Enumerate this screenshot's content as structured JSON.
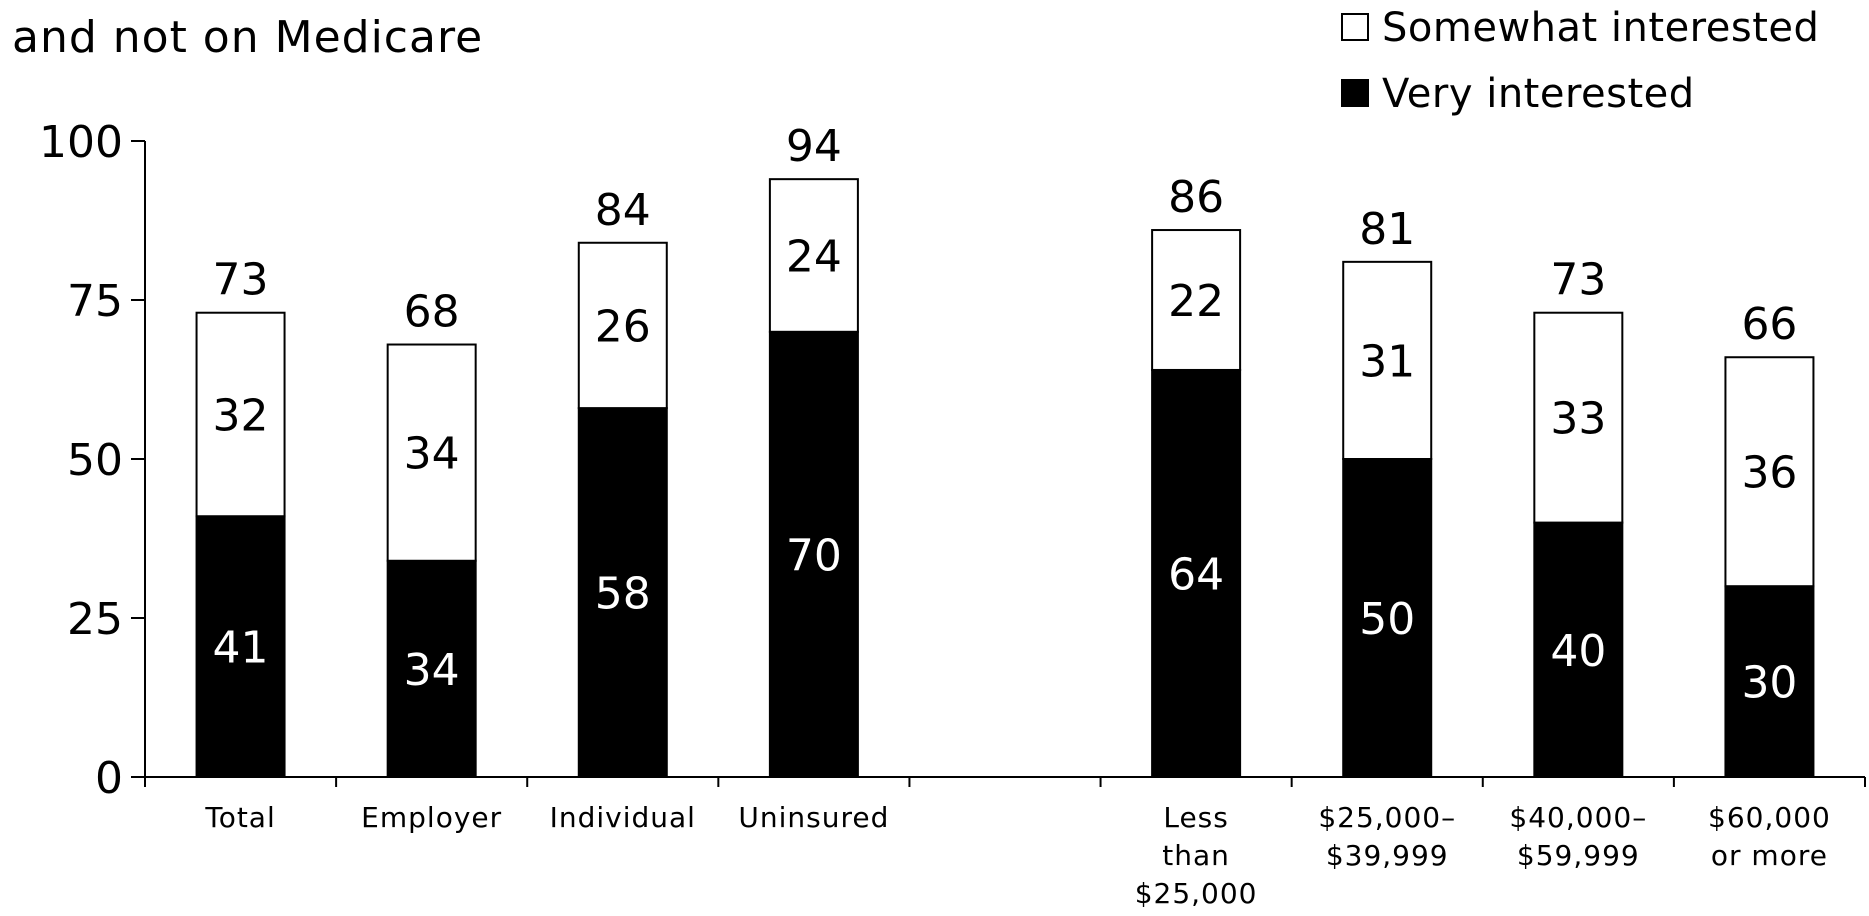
{
  "chart_data": {
    "type": "bar",
    "stacked": true,
    "title_lines": [
      "and not on Medicare"
    ],
    "xlabel": "",
    "ylabel": "",
    "ylim": [
      0,
      100
    ],
    "yticks": [
      "0",
      "25",
      "50",
      "75",
      "100"
    ],
    "grid": false,
    "legend_position": "top-right",
    "categories": [
      {
        "lines": [
          "Total"
        ]
      },
      {
        "lines": [
          "Employer"
        ]
      },
      {
        "lines": [
          "Individual"
        ]
      },
      {
        "lines": [
          "Uninsured"
        ]
      },
      {
        "lines": []
      },
      {
        "lines": [
          "Less",
          "than",
          "$25,000"
        ]
      },
      {
        "lines": [
          "$25,000–",
          "$39,999"
        ]
      },
      {
        "lines": [
          "$40,000–",
          "$59,999"
        ]
      },
      {
        "lines": [
          "$60,000",
          "or more"
        ]
      }
    ],
    "series": [
      {
        "name": "Very interested",
        "color": "#000000",
        "label_color": "#ffffff",
        "values": [
          41,
          34,
          58,
          70,
          null,
          64,
          50,
          40,
          30
        ],
        "labels": [
          "41",
          "34",
          "58",
          "70",
          "",
          "64",
          "50",
          "40",
          "30"
        ]
      },
      {
        "name": "Somewhat interested",
        "color": "#ffffff",
        "label_color": "#000000",
        "values": [
          32,
          34,
          26,
          24,
          null,
          22,
          31,
          33,
          36
        ],
        "labels": [
          "32",
          "34",
          "26",
          "24",
          "",
          "22",
          "31",
          "33",
          "36"
        ]
      }
    ],
    "totals": [
      73,
      68,
      84,
      94,
      null,
      86,
      81,
      73,
      66
    ],
    "total_labels": [
      "73",
      "68",
      "84",
      "94",
      "",
      "86",
      "81",
      "73",
      "66"
    ],
    "legend": [
      {
        "label": "Somewhat interested",
        "color": "#ffffff"
      },
      {
        "label": "Very interested",
        "color": "#000000"
      }
    ]
  }
}
